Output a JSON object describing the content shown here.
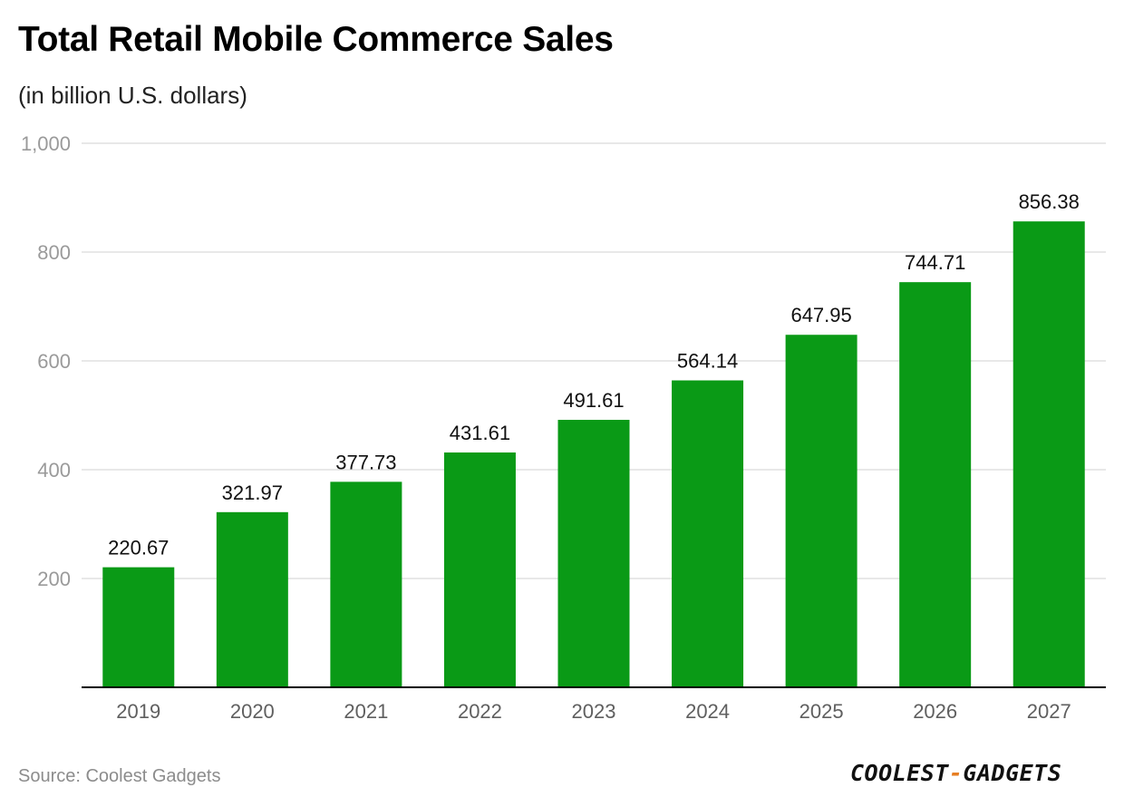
{
  "header": {
    "title": "Total Retail Mobile Commerce Sales",
    "subtitle": "(in billion U.S. dollars)"
  },
  "footer": {
    "source": "Source: Coolest Gadgets",
    "logo_part1": "COOLEST",
    "logo_dash": "-",
    "logo_part2": "GADGETS"
  },
  "colors": {
    "bar": "#0a9a16",
    "grid": "#e0e0e0",
    "axis": "#000000",
    "tick_label": "#9a9a9a",
    "category_label": "#5f5f5f",
    "data_label": "#111111",
    "logo_accent": "#e67e22"
  },
  "chart_data": {
    "type": "bar",
    "title": "Total Retail Mobile Commerce Sales",
    "subtitle": "(in billion U.S. dollars)",
    "xlabel": "",
    "ylabel": "",
    "categories": [
      "2019",
      "2020",
      "2021",
      "2022",
      "2023",
      "2024",
      "2025",
      "2026",
      "2027"
    ],
    "values": [
      220.67,
      321.97,
      377.73,
      431.61,
      491.61,
      564.14,
      647.95,
      744.71,
      856.38
    ],
    "value_labels": [
      "220.67",
      "321.97",
      "377.73",
      "431.61",
      "491.61",
      "564.14",
      "647.95",
      "744.71",
      "856.38"
    ],
    "ylim": [
      0,
      1000
    ],
    "yticks": [
      200,
      400,
      600,
      800,
      1000
    ],
    "ytick_labels": [
      "200",
      "400",
      "600",
      "800",
      "1,000"
    ],
    "grid": true,
    "legend": "none"
  }
}
